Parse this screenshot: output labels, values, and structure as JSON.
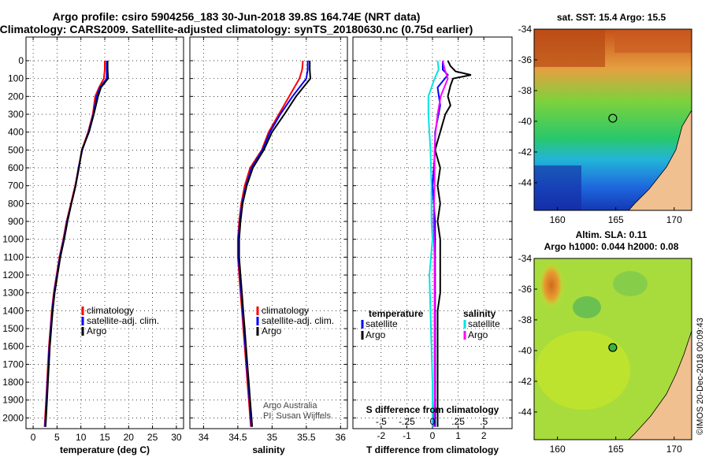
{
  "title_line1": "Argo profile: csiro 5904256_183 30-Jun-2018 39.8S 164.74E (NRT data)",
  "title_line2": "Climatology: CARS2009. Satellite-adjusted climatology: synTS_20180630.nc (0.75d earlier)",
  "credit_line1": "Argo Australia",
  "credit_line2": "PI: Susan Wijffels",
  "stamp": "©IMOS 20-Dec-2018 00:09:43",
  "map_top_title": "sat. SST: 15.4 Argo: 15.5",
  "map_bottom_title_line1": "Altim. SLA: 0.11",
  "map_bottom_title_line2": "Argo h1000: 0.044 h2000: 0.08",
  "colors": {
    "climatology": "#ff0000",
    "satellite": "#0000ff",
    "argo": "#000000",
    "sat_salinity": "#00e5e5",
    "argo_salinity": "#ff00ff"
  },
  "chart_data": [
    {
      "type": "line",
      "xlabel": "temperature (deg C)",
      "ylabel": "",
      "xlim": [
        -1.5,
        31.5
      ],
      "ylim": [
        2060,
        0
      ],
      "xticks": [
        0,
        5,
        10,
        15,
        20,
        25,
        30
      ],
      "yticks": [
        0,
        100,
        200,
        300,
        400,
        500,
        600,
        700,
        800,
        900,
        1000,
        1100,
        1200,
        1300,
        1400,
        1500,
        1600,
        1700,
        1800,
        1900,
        2000
      ],
      "legend": [
        "climatology",
        "satellite-adj. clim.",
        "Argo"
      ],
      "grid": true,
      "series": [
        {
          "name": "climatology",
          "color": "#ff0000",
          "points": [
            [
              15.0,
              0
            ],
            [
              15.0,
              50
            ],
            [
              14.8,
              100
            ],
            [
              13.8,
              150
            ],
            [
              13.0,
              200
            ],
            [
              12.5,
              300
            ],
            [
              11.5,
              400
            ],
            [
              10.2,
              500
            ],
            [
              9.5,
              600
            ],
            [
              8.8,
              700
            ],
            [
              7.9,
              800
            ],
            [
              7.0,
              900
            ],
            [
              6.3,
              1000
            ],
            [
              5.5,
              1100
            ],
            [
              4.9,
              1200
            ],
            [
              4.3,
              1300
            ],
            [
              3.9,
              1400
            ],
            [
              3.6,
              1500
            ],
            [
              3.3,
              1600
            ],
            [
              3.1,
              1700
            ],
            [
              2.9,
              1800
            ],
            [
              2.7,
              1900
            ],
            [
              2.5,
              2000
            ],
            [
              2.4,
              2050
            ]
          ]
        },
        {
          "name": "satellite-adj. clim.",
          "color": "#0000ff",
          "points": [
            [
              15.4,
              0
            ],
            [
              15.4,
              50
            ],
            [
              15.4,
              100
            ],
            [
              14.0,
              150
            ],
            [
              13.3,
              200
            ],
            [
              12.6,
              300
            ],
            [
              11.6,
              400
            ],
            [
              10.3,
              500
            ],
            [
              9.5,
              600
            ],
            [
              8.9,
              700
            ],
            [
              8.0,
              800
            ],
            [
              7.1,
              900
            ],
            [
              6.4,
              1000
            ],
            [
              5.6,
              1100
            ],
            [
              5.0,
              1200
            ],
            [
              4.4,
              1300
            ],
            [
              4.0,
              1400
            ],
            [
              3.7,
              1500
            ],
            [
              3.4,
              1600
            ],
            [
              3.2,
              1700
            ],
            [
              3.0,
              1800
            ],
            [
              2.8,
              1900
            ],
            [
              2.6,
              2000
            ],
            [
              2.5,
              2050
            ]
          ]
        },
        {
          "name": "Argo",
          "color": "#000000",
          "points": [
            [
              15.6,
              0
            ],
            [
              15.6,
              50
            ],
            [
              15.7,
              100
            ],
            [
              14.2,
              150
            ],
            [
              13.6,
              200
            ],
            [
              12.7,
              300
            ],
            [
              11.7,
              400
            ],
            [
              10.2,
              500
            ],
            [
              9.6,
              600
            ],
            [
              8.9,
              700
            ],
            [
              8.0,
              800
            ],
            [
              7.2,
              900
            ],
            [
              6.5,
              1000
            ],
            [
              5.7,
              1100
            ],
            [
              5.1,
              1200
            ],
            [
              4.5,
              1300
            ],
            [
              4.1,
              1400
            ],
            [
              3.8,
              1500
            ],
            [
              3.5,
              1600
            ],
            [
              3.3,
              1700
            ],
            [
              3.1,
              1800
            ],
            [
              2.9,
              1900
            ],
            [
              2.7,
              2000
            ],
            [
              2.6,
              2050
            ]
          ]
        }
      ]
    },
    {
      "type": "line",
      "xlabel": "salinity",
      "ylabel": "",
      "xlim": [
        33.8,
        36.1
      ],
      "ylim": [
        2060,
        0
      ],
      "xticks": [
        34,
        34.5,
        35,
        35.5,
        36
      ],
      "legend": [
        "climatology",
        "satellite-adj. clim.",
        "Argo"
      ],
      "grid": true,
      "series": [
        {
          "name": "climatology",
          "color": "#ff0000",
          "points": [
            [
              35.45,
              0
            ],
            [
              35.44,
              50
            ],
            [
              35.4,
              100
            ],
            [
              35.25,
              200
            ],
            [
              35.1,
              300
            ],
            [
              34.95,
              400
            ],
            [
              34.85,
              500
            ],
            [
              34.68,
              600
            ],
            [
              34.6,
              700
            ],
            [
              34.55,
              800
            ],
            [
              34.52,
              900
            ],
            [
              34.5,
              1000
            ],
            [
              34.5,
              1100
            ],
            [
              34.52,
              1200
            ],
            [
              34.54,
              1300
            ],
            [
              34.56,
              1400
            ],
            [
              34.58,
              1500
            ],
            [
              34.6,
              1600
            ],
            [
              34.62,
              1700
            ],
            [
              34.64,
              1800
            ],
            [
              34.66,
              1900
            ],
            [
              34.68,
              2000
            ],
            [
              34.69,
              2050
            ]
          ]
        },
        {
          "name": "satellite-adj. clim.",
          "color": "#0000ff",
          "points": [
            [
              35.52,
              0
            ],
            [
              35.52,
              50
            ],
            [
              35.5,
              100
            ],
            [
              35.3,
              200
            ],
            [
              35.12,
              300
            ],
            [
              34.97,
              400
            ],
            [
              34.86,
              500
            ],
            [
              34.7,
              600
            ],
            [
              34.62,
              700
            ],
            [
              34.56,
              800
            ],
            [
              34.53,
              900
            ],
            [
              34.51,
              1000
            ],
            [
              34.51,
              1100
            ],
            [
              34.53,
              1200
            ],
            [
              34.55,
              1300
            ],
            [
              34.57,
              1400
            ],
            [
              34.59,
              1500
            ],
            [
              34.61,
              1600
            ],
            [
              34.63,
              1700
            ],
            [
              34.65,
              1800
            ],
            [
              34.67,
              1900
            ],
            [
              34.69,
              2000
            ],
            [
              34.7,
              2050
            ]
          ]
        },
        {
          "name": "Argo",
          "color": "#000000",
          "points": [
            [
              35.55,
              0
            ],
            [
              35.55,
              50
            ],
            [
              35.56,
              100
            ],
            [
              35.35,
              200
            ],
            [
              35.18,
              300
            ],
            [
              35.0,
              400
            ],
            [
              34.88,
              500
            ],
            [
              34.72,
              600
            ],
            [
              34.63,
              700
            ],
            [
              34.57,
              800
            ],
            [
              34.54,
              900
            ],
            [
              34.52,
              1000
            ],
            [
              34.52,
              1100
            ],
            [
              34.54,
              1200
            ],
            [
              34.56,
              1300
            ],
            [
              34.58,
              1400
            ],
            [
              34.6,
              1500
            ],
            [
              34.62,
              1600
            ],
            [
              34.64,
              1700
            ],
            [
              34.66,
              1800
            ],
            [
              34.68,
              1900
            ],
            [
              34.7,
              2000
            ],
            [
              34.71,
              2050
            ]
          ]
        }
      ]
    },
    {
      "type": "line",
      "xlabel": "T difference from climatology",
      "xlabel2": "S difference from climatology",
      "ylabel": "",
      "xlim": [
        -3.1,
        3.1
      ],
      "ylim": [
        2060,
        0
      ],
      "xticks": [
        -2,
        -1,
        0,
        1,
        2
      ],
      "xticks_S": [
        -0.5,
        -0.25,
        0,
        0.25,
        0.5
      ],
      "s_factor": 4,
      "legend_temperature_heading": "temperature",
      "legend_salinity_heading": "salinity",
      "legend": [
        "satellite",
        "Argo",
        "satellite",
        "Argo"
      ],
      "grid": true,
      "series": [
        {
          "name": "satellite",
          "variable": "temperature",
          "color": "#0000ff",
          "points": [
            [
              0.4,
              0
            ],
            [
              0.4,
              50
            ],
            [
              0.6,
              80
            ],
            [
              0.2,
              150
            ],
            [
              0.3,
              250
            ],
            [
              0.1,
              400
            ],
            [
              0.1,
              500
            ],
            [
              0.0,
              700
            ],
            [
              0.1,
              900
            ],
            [
              0.1,
              1100
            ],
            [
              0.1,
              1300
            ],
            [
              0.1,
              1500
            ],
            [
              0.1,
              1700
            ],
            [
              0.1,
              1900
            ],
            [
              0.1,
              2050
            ]
          ]
        },
        {
          "name": "Argo",
          "variable": "temperature",
          "color": "#000000",
          "points": [
            [
              0.6,
              0
            ],
            [
              0.7,
              30
            ],
            [
              0.9,
              60
            ],
            [
              1.5,
              80
            ],
            [
              0.8,
              100
            ],
            [
              0.7,
              140
            ],
            [
              0.6,
              200
            ],
            [
              0.7,
              250
            ],
            [
              0.5,
              300
            ],
            [
              0.4,
              350
            ],
            [
              0.3,
              400
            ],
            [
              0.2,
              450
            ],
            [
              0.1,
              500
            ],
            [
              0.3,
              600
            ],
            [
              0.2,
              700
            ],
            [
              0.3,
              800
            ],
            [
              0.2,
              900
            ],
            [
              0.3,
              1000
            ],
            [
              0.3,
              1100
            ],
            [
              0.3,
              1200
            ],
            [
              0.3,
              1300
            ],
            [
              0.2,
              1400
            ],
            [
              0.2,
              1500
            ],
            [
              0.2,
              1600
            ],
            [
              0.2,
              1700
            ],
            [
              0.2,
              1800
            ],
            [
              0.2,
              1900
            ],
            [
              0.2,
              2050
            ]
          ]
        },
        {
          "name": "satellite",
          "variable": "salinity",
          "color": "#00e5e5",
          "points": [
            [
              0.05,
              0
            ],
            [
              0.06,
              50
            ],
            [
              0.02,
              100
            ],
            [
              -0.04,
              200
            ],
            [
              -0.04,
              300
            ],
            [
              -0.03,
              400
            ],
            [
              -0.02,
              500
            ],
            [
              -0.01,
              700
            ],
            [
              -0.01,
              900
            ],
            [
              0.0,
              1000
            ],
            [
              -0.03,
              1200
            ],
            [
              -0.02,
              1400
            ],
            [
              -0.01,
              1600
            ],
            [
              0.0,
              1800
            ],
            [
              0.0,
              2050
            ]
          ]
        },
        {
          "name": "Argo",
          "variable": "salinity",
          "color": "#ff00ff",
          "points": [
            [
              0.1,
              0
            ],
            [
              0.12,
              50
            ],
            [
              0.15,
              100
            ],
            [
              0.08,
              200
            ],
            [
              0.05,
              300
            ],
            [
              0.03,
              400
            ],
            [
              0.02,
              500
            ],
            [
              0.02,
              700
            ],
            [
              0.01,
              900
            ],
            [
              0.02,
              1100
            ],
            [
              0.02,
              1300
            ],
            [
              0.02,
              1500
            ],
            [
              0.02,
              1700
            ],
            [
              0.02,
              1900
            ],
            [
              0.01,
              2050
            ]
          ]
        }
      ]
    },
    {
      "type": "heatmap",
      "title": "sat. SST: 15.4 Argo: 15.5",
      "xlim": [
        158,
        171.5
      ],
      "ylim": [
        -45.8,
        -34
      ],
      "xticks": [
        160,
        165,
        170
      ],
      "yticks": [
        -34,
        -36,
        -38,
        -40,
        -42,
        -44
      ],
      "argo_position": [
        164.74,
        -39.8
      ]
    },
    {
      "type": "heatmap",
      "title": "Altim. SLA: 0.11",
      "subtitle": "Argo h1000: 0.044 h2000: 0.08",
      "xlim": [
        158,
        171.5
      ],
      "ylim": [
        -45.8,
        -34
      ],
      "xticks": [
        160,
        165,
        170
      ],
      "yticks": [
        -34,
        -36,
        -38,
        -40,
        -42,
        -44
      ],
      "argo_position": [
        164.74,
        -39.8
      ]
    }
  ]
}
